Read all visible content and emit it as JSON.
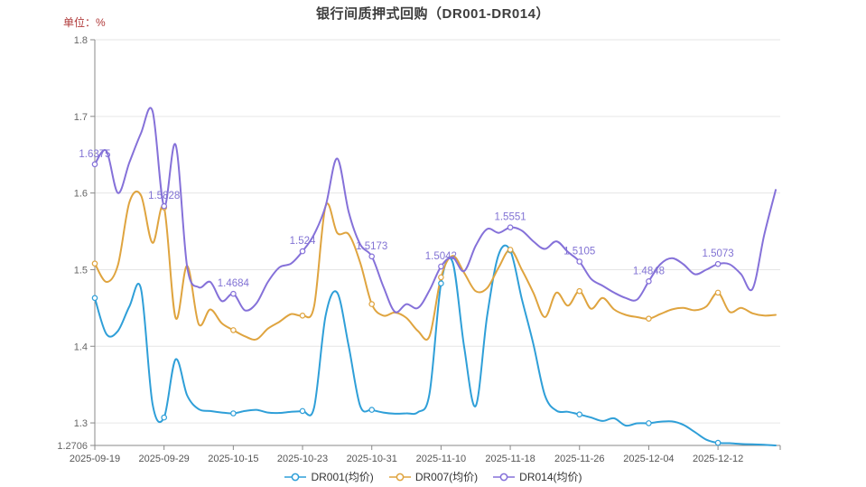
{
  "header": {
    "title": "银行间质押式回购（DR001-DR014）",
    "unit_label": "单位：%"
  },
  "style": {
    "background": "#ffffff",
    "grid_color": "#e6e6e6",
    "axis_color": "#888888",
    "title_color": "#3d3d3d",
    "unit_color": "#b03a3a",
    "annotation_color": "#8273d4"
  },
  "chart_data": {
    "type": "line",
    "title": "银行间质押式回购（DR001-DR014）",
    "unit": "%",
    "grid": "horizontal-only",
    "legend_position": "bottom-center",
    "n_points": 60,
    "y_axis": {
      "min": 1.2706,
      "max": 1.8,
      "ticks": [
        {
          "value": 1.8,
          "label": "1.8"
        },
        {
          "value": 1.7,
          "label": "1.7"
        },
        {
          "value": 1.6,
          "label": "1.6"
        },
        {
          "value": 1.5,
          "label": "1.5"
        },
        {
          "value": 1.4,
          "label": "1.4"
        },
        {
          "value": 1.3,
          "label": "1.3"
        },
        {
          "value": 1.2706,
          "label": "1.2706"
        }
      ]
    },
    "x_axis": {
      "labels": [
        "2025-09-19",
        "2025-09-29",
        "2025-10-15",
        "2025-10-23",
        "2025-10-31",
        "2025-11-10",
        "2025-11-18",
        "2025-11-26",
        "2025-12-04",
        "2025-12-12"
      ],
      "indices": [
        0,
        6,
        12,
        18,
        24,
        30,
        36,
        42,
        48,
        54
      ]
    },
    "series": [
      {
        "name": "DR001(均价)",
        "color": "#2f9fd8",
        "values": [
          1.463,
          1.416,
          1.42,
          1.452,
          1.475,
          1.325,
          1.307,
          1.383,
          1.336,
          1.318,
          1.3155,
          1.3135,
          1.3125,
          1.3155,
          1.317,
          1.3135,
          1.313,
          1.3145,
          1.3155,
          1.32,
          1.44,
          1.47,
          1.4,
          1.322,
          1.317,
          1.3135,
          1.312,
          1.3125,
          1.314,
          1.338,
          1.482,
          1.51,
          1.4,
          1.322,
          1.44,
          1.52,
          1.525,
          1.462,
          1.403,
          1.336,
          1.316,
          1.3145,
          1.311,
          1.307,
          1.3025,
          1.306,
          1.2965,
          1.2995,
          1.2996,
          1.3015,
          1.302,
          1.2975,
          1.288,
          1.278,
          1.274,
          1.2735,
          1.2725,
          1.272,
          1.2715,
          1.2706
        ]
      },
      {
        "name": "DR007(均价)",
        "color": "#dfa43f",
        "values": [
          1.508,
          1.484,
          1.506,
          1.588,
          1.597,
          1.535,
          1.581,
          1.437,
          1.505,
          1.429,
          1.448,
          1.43,
          1.421,
          1.413,
          1.409,
          1.423,
          1.432,
          1.442,
          1.44,
          1.452,
          1.583,
          1.548,
          1.546,
          1.509,
          1.455,
          1.44,
          1.444,
          1.437,
          1.42,
          1.413,
          1.49,
          1.518,
          1.496,
          1.472,
          1.476,
          1.503,
          1.526,
          1.5,
          1.47,
          1.438,
          1.47,
          1.453,
          1.472,
          1.449,
          1.463,
          1.448,
          1.441,
          1.438,
          1.436,
          1.442,
          1.448,
          1.45,
          1.447,
          1.452,
          1.47,
          1.445,
          1.45,
          1.443,
          1.44,
          1.441
        ]
      },
      {
        "name": "DR014(均价)",
        "color": "#8571d9",
        "values": [
          1.6375,
          1.655,
          1.6,
          1.64,
          1.678,
          1.707,
          1.5828,
          1.663,
          1.504,
          1.477,
          1.484,
          1.459,
          1.4684,
          1.447,
          1.456,
          1.484,
          1.503,
          1.508,
          1.524,
          1.546,
          1.583,
          1.645,
          1.575,
          1.533,
          1.5173,
          1.478,
          1.445,
          1.455,
          1.45,
          1.473,
          1.5042,
          1.516,
          1.498,
          1.531,
          1.553,
          1.548,
          1.5551,
          1.551,
          1.537,
          1.527,
          1.537,
          1.523,
          1.5105,
          1.488,
          1.479,
          1.47,
          1.463,
          1.461,
          1.4848,
          1.507,
          1.515,
          1.507,
          1.494,
          1.5,
          1.5073,
          1.507,
          1.494,
          1.475,
          1.545,
          1.604
        ]
      }
    ],
    "annotations": [
      {
        "index": 0,
        "series": "DR014(均价)",
        "label": "1.6375"
      },
      {
        "index": 6,
        "series": "DR014(均价)",
        "label": "1.5828"
      },
      {
        "index": 12,
        "series": "DR014(均价)",
        "label": "1.4684"
      },
      {
        "index": 18,
        "series": "DR014(均价)",
        "label": "1.524"
      },
      {
        "index": 24,
        "series": "DR014(均价)",
        "label": "1.5173"
      },
      {
        "index": 30,
        "series": "DR014(均价)",
        "label": "1.5042"
      },
      {
        "index": 36,
        "series": "DR014(均价)",
        "label": "1.5551"
      },
      {
        "index": 42,
        "series": "DR014(均价)",
        "label": "1.5105"
      },
      {
        "index": 48,
        "series": "DR014(均价)",
        "label": "1.4848"
      },
      {
        "index": 54,
        "series": "DR014(均价)",
        "label": "1.5073"
      }
    ]
  },
  "legend": {
    "items": [
      {
        "label": "DR001(均价)",
        "color": "#2f9fd8"
      },
      {
        "label": "DR007(均价)",
        "color": "#dfa43f"
      },
      {
        "label": "DR014(均价)",
        "color": "#8571d9"
      }
    ]
  }
}
